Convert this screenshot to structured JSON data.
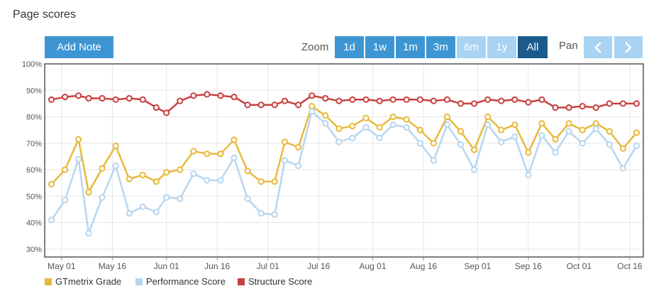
{
  "page": {
    "title": "Page scores"
  },
  "toolbar": {
    "add_note_label": "Add Note",
    "zoom_label": "Zoom",
    "pan_label": "Pan",
    "zoom_buttons": [
      {
        "label": "1d",
        "state": "normal"
      },
      {
        "label": "1w",
        "state": "normal"
      },
      {
        "label": "1m",
        "state": "normal"
      },
      {
        "label": "3m",
        "state": "normal"
      },
      {
        "label": "6m",
        "state": "disabled"
      },
      {
        "label": "1y",
        "state": "disabled"
      },
      {
        "label": "All",
        "state": "active"
      }
    ],
    "pan_icons": [
      "chevron-left-icon",
      "chevron-right-icon"
    ]
  },
  "colors": {
    "button": "#3d96d3",
    "button_disabled": "#a9d3f2",
    "button_active": "#1a5b8c",
    "gtmetrix": "#e8b93c",
    "performance": "#b7d6ef",
    "structure": "#c9403f"
  },
  "chart_data": {
    "type": "line",
    "title": "",
    "xlabel": "",
    "ylabel": "",
    "ylim": [
      27,
      100
    ],
    "y_ticks": [
      "30%",
      "40%",
      "50%",
      "60%",
      "70%",
      "80%",
      "90%",
      "100%"
    ],
    "x_ticks": [
      "May 01",
      "May 16",
      "Jun 01",
      "Jun 16",
      "Jul 01",
      "Jul 16",
      "Aug 01",
      "Aug 16",
      "Sep 01",
      "Sep 16",
      "Oct 01",
      "Oct 16"
    ],
    "x": [
      "Apr 28",
      "May 02",
      "May 06",
      "May 09",
      "May 13",
      "May 17",
      "May 21",
      "May 25",
      "May 29",
      "Jun 01",
      "Jun 05",
      "Jun 09",
      "Jun 13",
      "Jun 17",
      "Jun 21",
      "Jun 25",
      "Jun 29",
      "Jul 03",
      "Jul 06",
      "Jul 10",
      "Jul 14",
      "Jul 18",
      "Jul 22",
      "Jul 26",
      "Jul 30",
      "Aug 03",
      "Aug 07",
      "Aug 11",
      "Aug 15",
      "Aug 19",
      "Aug 23",
      "Aug 27",
      "Aug 31",
      "Sep 04",
      "Sep 08",
      "Sep 12",
      "Sep 16",
      "Sep 20",
      "Sep 24",
      "Sep 28",
      "Oct 02",
      "Oct 06",
      "Oct 10",
      "Oct 14",
      "Oct 18"
    ],
    "grid": true,
    "legend_position": "bottom-left",
    "series": [
      {
        "name": "GTmetrix Grade",
        "color": "#e8b93c",
        "values": [
          54.5,
          60,
          71.5,
          51.5,
          60.5,
          69,
          56.5,
          58,
          55.5,
          59,
          60,
          67,
          66,
          66,
          71.3,
          59.5,
          55.5,
          55.5,
          70.5,
          68.5,
          84,
          80.5,
          75.5,
          76.5,
          79.5,
          76,
          80,
          79,
          75,
          70,
          80,
          74.5,
          67.5,
          80,
          75,
          77,
          66.5,
          77.5,
          71.5,
          77.5,
          75,
          77.5,
          74.5,
          68,
          74
        ]
      },
      {
        "name": "Performance Score",
        "color": "#b7d6ef",
        "values": [
          41,
          48.5,
          64,
          36,
          49.5,
          61.5,
          43.5,
          46,
          44,
          49.5,
          49,
          58.5,
          56,
          56,
          64.5,
          49,
          43.5,
          43,
          63.5,
          61.5,
          82,
          77.5,
          70.5,
          72,
          76,
          72,
          77,
          76,
          70,
          63.5,
          77,
          69.5,
          60,
          77,
          70.5,
          72.5,
          58,
          73,
          66.5,
          74.5,
          70,
          75.5,
          69.5,
          60.5,
          69
        ]
      },
      {
        "name": "Structure Score",
        "color": "#c9403f",
        "values": [
          86.5,
          87.5,
          88,
          87,
          87,
          86.5,
          87,
          86.5,
          83.5,
          81.5,
          86,
          88,
          88.5,
          88,
          87.5,
          84.5,
          84.5,
          84.5,
          86,
          84.5,
          88,
          87,
          86,
          86.5,
          86.5,
          86,
          86.5,
          86.5,
          86.5,
          86,
          86.5,
          85,
          85,
          86.5,
          86,
          86.5,
          85.5,
          86.5,
          83.5,
          83.5,
          84,
          83.5,
          85,
          85,
          85
        ]
      }
    ]
  }
}
